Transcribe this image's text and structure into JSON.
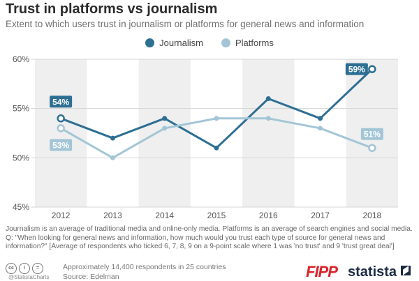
{
  "header": {
    "title": "Trust in platforms vs journalism",
    "subtitle": "Extent to which users trust in journalism or platforms for general news and information"
  },
  "legend": {
    "journalism": "Journalism",
    "platforms": "Platforms"
  },
  "colors": {
    "journalism": "#2d6f93",
    "platforms": "#a3c6d6",
    "band": "#efefef"
  },
  "chart_data": {
    "type": "line",
    "x": [
      "2012",
      "2013",
      "2014",
      "2015",
      "2016",
      "2017",
      "2018"
    ],
    "series": [
      {
        "name": "Journalism",
        "values": [
          54,
          52,
          54,
          51,
          56,
          54,
          59
        ]
      },
      {
        "name": "Platforms",
        "values": [
          53,
          50,
          53,
          54,
          54,
          53,
          51
        ]
      }
    ],
    "ylim": [
      45,
      60
    ],
    "yticks": [
      "45%",
      "50%",
      "55%",
      "60%"
    ],
    "data_labels": [
      {
        "series": 0,
        "index": 0,
        "text": "54%"
      },
      {
        "series": 0,
        "index": 6,
        "text": "59%"
      },
      {
        "series": 1,
        "index": 0,
        "text": "53%"
      },
      {
        "series": 1,
        "index": 6,
        "text": "51%"
      }
    ],
    "grid": true,
    "legend_position": "top-center"
  },
  "footnote": {
    "line1": "Journalism is an average of traditional media and online-only media. Platforms is an average of search engines and social media.",
    "line2": "Q: \"When looking for general news and information, how much would you trust each type of source for general news and information?\" [Average of respondents who ticked 6, 7, 8, 9 on a 9-point scale where 1 was 'no trust' and 9 'trust great deal']"
  },
  "footer": {
    "handle": "@StatistaCharts",
    "respondents": "Approximately 14,400 respondents in 25 countries",
    "source": "Source: Edelman",
    "fipp_logo": "FIPP",
    "statista_logo": "statista",
    "icons": [
      "cc-icon",
      "by-icon",
      "nd-icon"
    ]
  }
}
